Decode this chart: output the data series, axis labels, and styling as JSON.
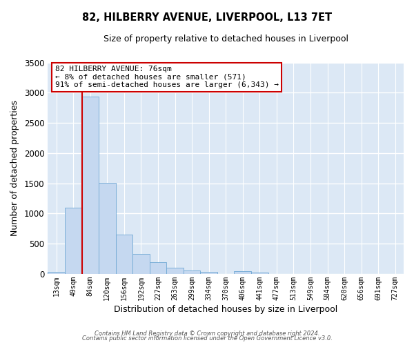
{
  "title": "82, HILBERRY AVENUE, LIVERPOOL, L13 7ET",
  "subtitle": "Size of property relative to detached houses in Liverpool",
  "xlabel": "Distribution of detached houses by size in Liverpool",
  "ylabel": "Number of detached properties",
  "bar_labels": [
    "13sqm",
    "49sqm",
    "84sqm",
    "120sqm",
    "156sqm",
    "192sqm",
    "227sqm",
    "263sqm",
    "299sqm",
    "334sqm",
    "370sqm",
    "406sqm",
    "441sqm",
    "477sqm",
    "513sqm",
    "549sqm",
    "584sqm",
    "620sqm",
    "656sqm",
    "691sqm",
    "727sqm"
  ],
  "bar_values": [
    40,
    1100,
    2940,
    1510,
    650,
    330,
    195,
    105,
    60,
    35,
    0,
    45,
    20,
    0,
    0,
    0,
    0,
    0,
    0,
    0,
    0
  ],
  "bar_color": "#c5d8f0",
  "bar_edge_color": "#6fa8d4",
  "vline_color": "#cc0000",
  "vline_x_index": 2,
  "ylim": [
    0,
    3500
  ],
  "yticks": [
    0,
    500,
    1000,
    1500,
    2000,
    2500,
    3000,
    3500
  ],
  "annotation_title": "82 HILBERRY AVENUE: 76sqm",
  "annotation_line1": "← 8% of detached houses are smaller (571)",
  "annotation_line2": "91% of semi-detached houses are larger (6,343) →",
  "annotation_box_color": "#ffffff",
  "annotation_box_edge": "#cc0000",
  "footer1": "Contains HM Land Registry data © Crown copyright and database right 2024.",
  "footer2": "Contains public sector information licensed under the Open Government Licence v3.0.",
  "fig_bg_color": "#ffffff",
  "plot_bg_color": "#dce8f5",
  "grid_color": "#ffffff"
}
